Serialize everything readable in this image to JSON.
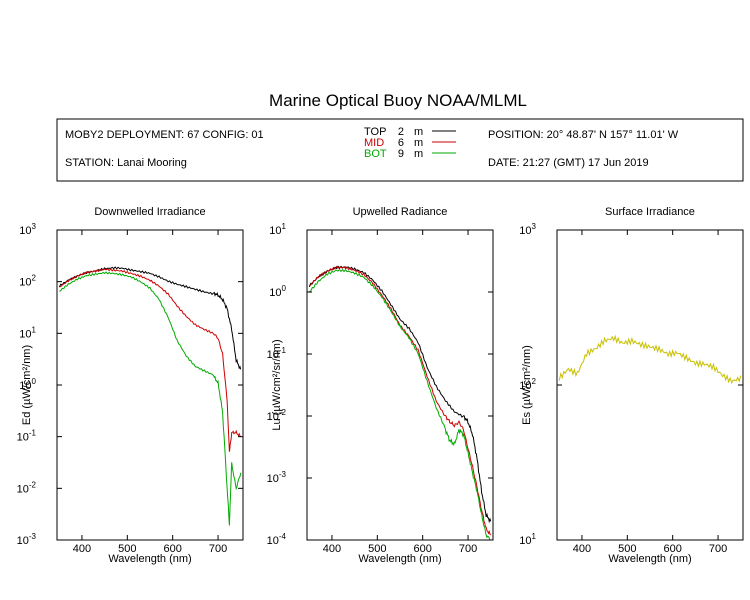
{
  "header": {
    "title": "Marine Optical Buoy NOAA/MLML",
    "deployment": "MOBY2 DEPLOYMENT: 67 CONFIG: 01",
    "station": "STATION: Lanai Mooring",
    "position": "POSITION: 20° 48.87' N   157° 11.01' W",
    "date": "DATE: 21:27 (GMT) 17 Jun 2019",
    "depth_legend": [
      {
        "name": "TOP",
        "depth": "2",
        "unit": "m",
        "color": "#000000"
      },
      {
        "name": "MID",
        "depth": "6",
        "unit": "m",
        "color": "#cc0000"
      },
      {
        "name": "BOT",
        "depth": "9",
        "unit": "m",
        "color": "#00aa00"
      }
    ]
  },
  "chart_data": [
    {
      "type": "line",
      "title": "Downwelled Irradiance",
      "xlabel": "Wavelength (nm)",
      "ylabel": "Ed  (µW/cm²/nm)",
      "yscale": "log",
      "xlim": [
        345,
        755
      ],
      "ylim": [
        0.001,
        1000
      ],
      "xticks": [
        400,
        500,
        600,
        700
      ],
      "yticks": [
        0.001,
        0.01,
        0.1,
        1,
        10,
        100,
        1000
      ],
      "ytick_exponents": [
        "-3",
        "-2",
        "-1",
        "0",
        "1",
        "2",
        "3"
      ],
      "series": [
        {
          "name": "TOP",
          "color": "#000000",
          "x": [
            350,
            370,
            390,
            410,
            430,
            450,
            470,
            490,
            510,
            530,
            550,
            570,
            590,
            610,
            630,
            650,
            670,
            690,
            700,
            710,
            720,
            730,
            740,
            750
          ],
          "y": [
            85,
            110,
            130,
            150,
            160,
            175,
            180,
            175,
            160,
            150,
            140,
            120,
            100,
            88,
            80,
            72,
            65,
            60,
            55,
            45,
            30,
            12,
            3,
            2
          ]
        },
        {
          "name": "MID",
          "color": "#cc0000",
          "x": [
            350,
            370,
            390,
            410,
            430,
            450,
            470,
            490,
            510,
            530,
            550,
            570,
            590,
            610,
            630,
            650,
            670,
            690,
            700,
            710,
            720,
            725,
            730,
            740,
            750
          ],
          "y": [
            75,
            100,
            125,
            145,
            155,
            170,
            165,
            160,
            145,
            130,
            110,
            85,
            60,
            35,
            22,
            15,
            12,
            10,
            8,
            4,
            0.5,
            0.05,
            0.12,
            0.12,
            0.1
          ]
        },
        {
          "name": "BOT",
          "color": "#00aa00",
          "x": [
            350,
            370,
            390,
            410,
            430,
            450,
            470,
            490,
            510,
            530,
            550,
            570,
            590,
            610,
            630,
            650,
            670,
            690,
            700,
            710,
            720,
            725,
            730,
            740,
            750
          ],
          "y": [
            65,
            90,
            115,
            135,
            145,
            155,
            150,
            140,
            125,
            100,
            75,
            45,
            20,
            7,
            3.5,
            2.2,
            1.8,
            1.5,
            1.1,
            0.3,
            0.01,
            0.002,
            0.03,
            0.01,
            0.02
          ]
        }
      ]
    },
    {
      "type": "line",
      "title": "Upwelled Radiance",
      "xlabel": "Wavelength (nm)",
      "ylabel": "Lu  (µW/cm²/sr/nm)",
      "yscale": "log",
      "xlim": [
        345,
        755
      ],
      "ylim": [
        0.0001,
        10
      ],
      "xticks": [
        400,
        500,
        600,
        700
      ],
      "yticks": [
        0.0001,
        0.001,
        0.01,
        0.1,
        1,
        10
      ],
      "ytick_exponents": [
        "-4",
        "-3",
        "-2",
        "-1",
        "0",
        "1"
      ],
      "series": [
        {
          "name": "TOP",
          "color": "#000000",
          "x": [
            350,
            370,
            390,
            410,
            430,
            450,
            470,
            490,
            510,
            530,
            550,
            570,
            590,
            610,
            630,
            650,
            670,
            690,
            700,
            710,
            720,
            730,
            740,
            750
          ],
          "y": [
            1.3,
            1.8,
            2.2,
            2.5,
            2.5,
            2.3,
            2.0,
            1.5,
            1.0,
            0.6,
            0.35,
            0.25,
            0.15,
            0.06,
            0.03,
            0.018,
            0.012,
            0.01,
            0.008,
            0.005,
            0.002,
            0.0006,
            0.00025,
            0.0002
          ]
        },
        {
          "name": "MID",
          "color": "#cc0000",
          "x": [
            350,
            370,
            390,
            410,
            430,
            450,
            470,
            490,
            510,
            530,
            550,
            570,
            590,
            610,
            630,
            650,
            660,
            670,
            680,
            690,
            700,
            710,
            720,
            730,
            740,
            750
          ],
          "y": [
            1.2,
            1.7,
            2.1,
            2.4,
            2.4,
            2.2,
            1.9,
            1.4,
            0.9,
            0.55,
            0.3,
            0.2,
            0.12,
            0.045,
            0.018,
            0.01,
            0.008,
            0.007,
            0.008,
            0.006,
            0.003,
            0.0015,
            0.0007,
            0.0003,
            0.00015,
            0.00012
          ]
        },
        {
          "name": "BOT",
          "color": "#00aa00",
          "x": [
            350,
            370,
            390,
            410,
            430,
            450,
            470,
            490,
            510,
            530,
            550,
            570,
            590,
            610,
            630,
            650,
            660,
            670,
            680,
            690,
            700,
            710,
            720,
            730,
            740,
            750
          ],
          "y": [
            1.0,
            1.5,
            2.0,
            2.3,
            2.3,
            2.1,
            1.8,
            1.3,
            0.85,
            0.5,
            0.28,
            0.18,
            0.1,
            0.035,
            0.013,
            0.006,
            0.004,
            0.0035,
            0.006,
            0.005,
            0.0025,
            0.0012,
            0.0006,
            0.00025,
            0.00012,
            0.0001
          ]
        }
      ]
    },
    {
      "type": "line",
      "title": "Surface Irradiance",
      "xlabel": "Wavelength (nm)",
      "ylabel": "Es  (µW/cm²/nm)",
      "yscale": "log",
      "xlim": [
        345,
        755
      ],
      "ylim": [
        10,
        1000
      ],
      "xticks": [
        400,
        500,
        600,
        700
      ],
      "yticks": [
        10,
        100,
        1000
      ],
      "ytick_exponents": [
        "1",
        "2",
        "3"
      ],
      "series": [
        {
          "name": "Es",
          "color": "#c8c000",
          "x": [
            350,
            370,
            390,
            410,
            430,
            450,
            470,
            490,
            510,
            530,
            550,
            570,
            590,
            610,
            630,
            650,
            670,
            690,
            710,
            730,
            750
          ],
          "y": [
            115,
            130,
            120,
            160,
            170,
            190,
            195,
            180,
            185,
            175,
            170,
            165,
            155,
            160,
            150,
            140,
            140,
            135,
            120,
            110,
            115
          ]
        }
      ]
    }
  ]
}
